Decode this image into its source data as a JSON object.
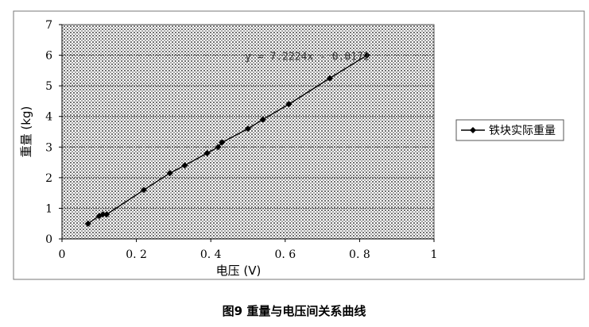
{
  "caption": "图9    重量与电压间关系曲线",
  "chart_data": {
    "type": "scatter",
    "xlabel": "电压 (V)",
    "ylabel": "重量 (kg)",
    "xlim": [
      0,
      1
    ],
    "ylim": [
      0,
      7
    ],
    "x_ticks": [
      0,
      0.2,
      0.4,
      0.6,
      0.8,
      1
    ],
    "x_tick_labels": [
      "0",
      "0. 2",
      "0. 4",
      "0. 6",
      "0. 8",
      "1"
    ],
    "y_ticks": [
      0,
      1,
      2,
      3,
      4,
      5,
      6,
      7
    ],
    "y_tick_labels": [
      "0",
      "1",
      "2",
      "3",
      "4",
      "5",
      "6",
      "7"
    ],
    "grid": true,
    "background": "dotted",
    "legend_position": "right",
    "series": [
      {
        "name": "铁块实际重量",
        "marker": "diamond",
        "color": "#000000",
        "x": [
          0.07,
          0.1,
          0.11,
          0.12,
          0.22,
          0.29,
          0.33,
          0.39,
          0.42,
          0.43,
          0.5,
          0.54,
          0.61,
          0.72,
          0.82
        ],
        "y": [
          0.5,
          0.75,
          0.8,
          0.8,
          1.6,
          2.15,
          2.4,
          2.8,
          3.0,
          3.15,
          3.6,
          3.9,
          4.4,
          5.25,
          6.0
        ]
      }
    ],
    "annotations": [
      {
        "text": "y = 7.2224x - 0.0172",
        "at_x": 0.62,
        "at_y": 5.95
      }
    ]
  }
}
